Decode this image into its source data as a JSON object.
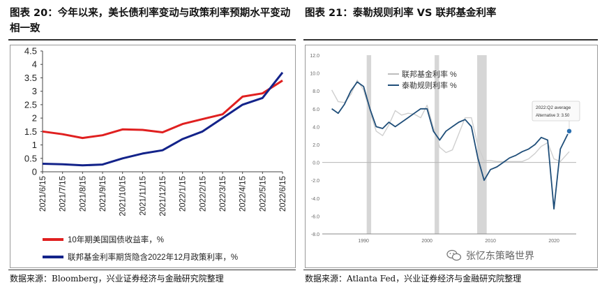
{
  "left": {
    "title": "图表 20：今年以来，美长债利率变动与政策利率预期水平变动相一致",
    "source": "数据来源：Bloomberg，兴业证券经济与金融研究院整理",
    "chart_data": {
      "type": "line",
      "x": [
        "2021/6/15",
        "2021/7/15",
        "2021/8/15",
        "2021/9/15",
        "2021/10/15",
        "2021/11/15",
        "2021/12/15",
        "2022/1/15",
        "2022/2/15",
        "2022/3/15",
        "2022/4/15",
        "2022/5/15",
        "2022/6/15"
      ],
      "ylim": [
        0,
        4.5
      ],
      "yticks": [
        "0",
        "0.5",
        "1",
        "1.5",
        "2",
        "2.5",
        "3",
        "3.5",
        "4",
        "4.5"
      ],
      "series": [
        {
          "name": "10年期美国国债收益率，%",
          "color": "#e02020",
          "values": [
            1.5,
            1.4,
            1.26,
            1.36,
            1.58,
            1.56,
            1.47,
            1.78,
            1.96,
            2.14,
            2.8,
            2.92,
            3.4
          ]
        },
        {
          "name": "联邦基金利率期货隐含2022年12月政策利率，%",
          "color": "#13238a",
          "values": [
            0.3,
            0.28,
            0.24,
            0.27,
            0.5,
            0.68,
            0.8,
            1.22,
            1.5,
            2.0,
            2.5,
            2.75,
            3.7
          ]
        }
      ]
    }
  },
  "right": {
    "title": "图表 21：泰勒规则利率 VS 联邦基金利率",
    "source": "数据来源：Atlanta Fed，兴业证券经济与金融研究院整理",
    "annotation": [
      "2022:Q2 average",
      "Alternative 3: 3.50"
    ],
    "chart_data": {
      "type": "line",
      "ylim": [
        -8,
        12
      ],
      "yticks": [
        "12.0",
        "10.0",
        "8.0",
        "6.0",
        "4.0",
        "2.0",
        "0.0",
        "-2.0",
        "-4.0",
        "-6.0",
        "-8.0"
      ],
      "xticks": [
        "1990",
        "2000",
        "2010",
        "2020"
      ],
      "x": [
        1985,
        1986,
        1987,
        1988,
        1989,
        1990,
        1991,
        1992,
        1993,
        1994,
        1995,
        1996,
        1997,
        1998,
        1999,
        2000,
        2001,
        2002,
        2003,
        2004,
        2005,
        2006,
        2007,
        2008,
        2009,
        2010,
        2011,
        2012,
        2013,
        2014,
        2015,
        2016,
        2017,
        2018,
        2019,
        2020,
        2021,
        2022.4
      ],
      "series": [
        {
          "name": "联邦基金利率 %",
          "color": "#cfcfcf",
          "values": [
            8.1,
            6.8,
            6.7,
            7.6,
            9.2,
            8.1,
            5.7,
            3.5,
            3.0,
            4.2,
            5.8,
            5.3,
            5.5,
            5.4,
            5.0,
            6.4,
            3.9,
            1.7,
            1.1,
            1.4,
            3.2,
            5.0,
            5.0,
            1.9,
            0.2,
            0.2,
            0.1,
            0.1,
            0.1,
            0.1,
            0.1,
            0.4,
            1.0,
            1.8,
            2.2,
            0.4,
            0.1,
            1.2
          ]
        },
        {
          "name": "泰勒规则利率 %",
          "color": "#1f4e79",
          "values": [
            6.0,
            5.5,
            6.5,
            8.0,
            9.0,
            8.5,
            6.0,
            4.0,
            3.8,
            4.5,
            4.0,
            4.5,
            5.0,
            5.5,
            6.0,
            6.0,
            3.5,
            2.5,
            3.5,
            4.0,
            4.5,
            4.8,
            4.0,
            0.5,
            -2.0,
            -0.8,
            -0.5,
            0.0,
            0.5,
            0.8,
            1.2,
            1.5,
            2.0,
            2.8,
            2.5,
            -5.2,
            1.5,
            3.5
          ]
        }
      ]
    }
  },
  "watermark": "张忆东策略世界"
}
